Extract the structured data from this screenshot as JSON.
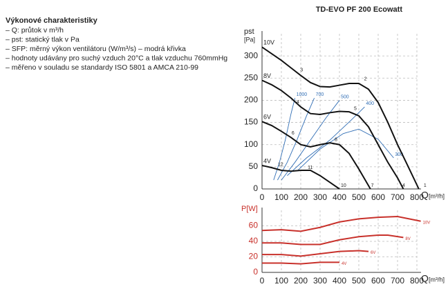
{
  "title": "TD-EVO PF 200 Ecowatt",
  "notes": {
    "heading": "Výkonové charakteristiky",
    "items": [
      "– Q: průtok v m³/h",
      "– pst: statický tlak v Pa",
      "– SFP: měrný výkon ventilátoru (W/m³/s) – modrá křivka",
      "– hodnoty udávány pro suchý vzduch 20°C a tlak vzduchu 760mmHg",
      "– měřeno v souladu se standardy ISO 5801 a AMCA 210-99"
    ]
  },
  "chart_data": [
    {
      "type": "line",
      "ylabel": "pst",
      "yunit": "[Pa]",
      "xlabel": "Q",
      "xunit": "[m³/h]",
      "xlim": [
        0,
        800
      ],
      "ylim": [
        0,
        350
      ],
      "xticks": [
        0,
        100,
        200,
        300,
        400,
        500,
        600,
        700,
        800
      ],
      "yticks": [
        0,
        50,
        100,
        150,
        200,
        250,
        300
      ],
      "grid": true,
      "series": [
        {
          "name": "10V",
          "color": "#111111",
          "x": [
            0,
            50,
            100,
            150,
            200,
            250,
            300,
            350,
            400,
            450,
            500,
            550,
            600,
            650,
            700,
            750,
            810
          ],
          "values": [
            320,
            305,
            290,
            273,
            256,
            240,
            231,
            230,
            234,
            238,
            238,
            225,
            195,
            150,
            100,
            55,
            0
          ]
        },
        {
          "name": "8V",
          "color": "#111111",
          "x": [
            0,
            50,
            100,
            150,
            200,
            250,
            300,
            350,
            400,
            450,
            500,
            550,
            600,
            650,
            700,
            730
          ],
          "values": [
            245,
            235,
            222,
            205,
            185,
            170,
            168,
            172,
            175,
            174,
            165,
            140,
            100,
            60,
            25,
            0
          ]
        },
        {
          "name": "6V",
          "color": "#111111",
          "x": [
            0,
            50,
            100,
            150,
            200,
            250,
            300,
            350,
            400,
            450,
            500,
            560
          ],
          "values": [
            152,
            143,
            130,
            116,
            100,
            95,
            100,
            104,
            100,
            80,
            45,
            0
          ]
        },
        {
          "name": "4V",
          "color": "#111111",
          "x": [
            0,
            50,
            100,
            150,
            200,
            250,
            300,
            350,
            400
          ],
          "values": [
            53,
            48,
            42,
            40,
            42,
            42,
            30,
            15,
            0
          ]
        }
      ],
      "sfp_series": [
        {
          "name": "1000",
          "color": "#2f6db5",
          "x": [
            60,
            90,
            120,
            150,
            170
          ],
          "values": [
            20,
            60,
            110,
            170,
            205
          ]
        },
        {
          "name": "700",
          "color": "#2f6db5",
          "x": [
            80,
            130,
            180,
            230,
            270
          ],
          "values": [
            20,
            60,
            110,
            165,
            205
          ]
        },
        {
          "name": "500",
          "color": "#2f6db5",
          "x": [
            100,
            170,
            250,
            330,
            400
          ],
          "values": [
            20,
            60,
            110,
            160,
            200
          ]
        },
        {
          "name": "400",
          "color": "#2f6db5",
          "x": [
            130,
            230,
            350,
            460,
            530
          ],
          "values": [
            30,
            70,
            110,
            155,
            185
          ]
        },
        {
          "name": "300",
          "color": "#2f6db5",
          "x": [
            180,
            300,
            420,
            500,
            600,
            680
          ],
          "values": [
            40,
            90,
            125,
            135,
            112,
            70
          ]
        }
      ],
      "annotations": [
        {
          "text": "1",
          "x": 828,
          "y": 0
        },
        {
          "text": "2",
          "x": 520,
          "y": 240
        },
        {
          "text": "3",
          "x": 190,
          "y": 260
        },
        {
          "text": "4",
          "x": 171,
          "y": 188
        },
        {
          "text": "5",
          "x": 468,
          "y": 173
        },
        {
          "text": "6",
          "x": 146,
          "y": 118
        },
        {
          "text": "7",
          "x": 556,
          "y": 0
        },
        {
          "text": "8",
          "x": 368,
          "y": 103
        },
        {
          "text": "4",
          "x": 718,
          "y": 0
        },
        {
          "text": "10",
          "x": 400,
          "y": 0
        },
        {
          "text": "11",
          "x": 229,
          "y": 40
        },
        {
          "text": "12",
          "x": 75,
          "y": 47
        }
      ]
    },
    {
      "type": "line",
      "ylabel": "P[W]",
      "xlabel": "Q",
      "xunit": "[m³/h]",
      "xlim": [
        0,
        800
      ],
      "ylim": [
        0,
        80
      ],
      "xticks": [
        0,
        100,
        200,
        300,
        400,
        500,
        600,
        700,
        800
      ],
      "yticks": [
        0,
        20,
        40,
        60
      ],
      "grid": true,
      "series": [
        {
          "name": "10V",
          "color": "#c8302a",
          "x": [
            0,
            100,
            200,
            300,
            400,
            500,
            600,
            700,
            820
          ],
          "values": [
            54,
            55,
            53,
            58,
            65,
            69,
            71,
            72,
            66
          ]
        },
        {
          "name": "8V",
          "color": "#c8302a",
          "x": [
            0,
            100,
            200,
            300,
            400,
            500,
            600,
            650,
            730
          ],
          "values": [
            38,
            38,
            36,
            36,
            42,
            46,
            48,
            48,
            45
          ]
        },
        {
          "name": "6V",
          "color": "#c8302a",
          "x": [
            0,
            100,
            200,
            300,
            400,
            500,
            550
          ],
          "values": [
            23,
            23,
            21,
            24,
            27,
            28,
            27
          ]
        },
        {
          "name": "4V",
          "color": "#c8302a",
          "x": [
            0,
            100,
            200,
            300,
            400
          ],
          "values": [
            12,
            12,
            11,
            13,
            13
          ]
        }
      ]
    }
  ]
}
